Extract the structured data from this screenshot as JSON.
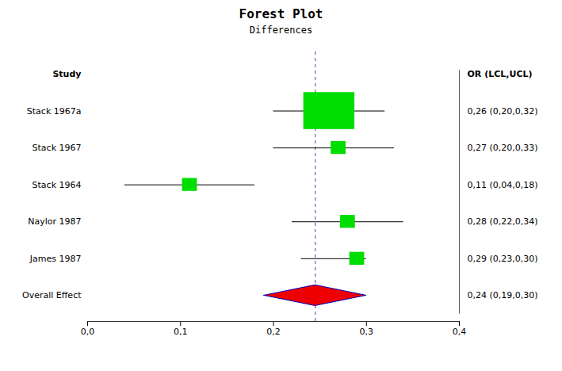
{
  "chart_data": {
    "type": "forest",
    "title": "Forest Plot",
    "subtitle": "Differences",
    "category_header": "Study",
    "value_header": "OR (LCL,UCL)",
    "categories": [
      "Stack 1967a",
      "Stack 1967",
      "Stack 1964",
      "Naylor 1987",
      "James 1987",
      "Overall Effect"
    ],
    "values": [
      0.26,
      0.27,
      0.11,
      0.28,
      0.29,
      0.245
    ],
    "lower": [
      0.2,
      0.2,
      0.04,
      0.22,
      0.23,
      0.19
    ],
    "upper": [
      0.32,
      0.33,
      0.18,
      0.34,
      0.3,
      0.3
    ],
    "value_labels": [
      "0,26 (0,20,0,32)",
      "0,27 (0,20,0,33)",
      "0,11 (0,04,0,18)",
      "0,28 (0,22,0,34)",
      "0,29 (0,23,0,30)",
      "0,24 (0,19,0,30)"
    ],
    "square_widths": [
      0.055,
      0.016,
      0.016,
      0.016,
      0.016
    ],
    "square_heights": [
      1.0,
      0.35,
      0.35,
      0.35,
      0.35
    ],
    "reference_line": 0.245,
    "xlim": [
      0.0,
      0.4
    ],
    "xticks": [
      {
        "value": 0.0,
        "label": "0,0"
      },
      {
        "value": 0.1,
        "label": "0,1"
      },
      {
        "value": 0.2,
        "label": "0,2"
      },
      {
        "value": 0.3,
        "label": "0,3"
      },
      {
        "value": 0.4,
        "label": "0,4"
      }
    ],
    "grid": false,
    "color": "#00dd00",
    "diamond_color": "#ee0000",
    "diamond_outline_color": "#0000bb",
    "line_color": "#000000",
    "reference_line_color": "#4444aa"
  }
}
